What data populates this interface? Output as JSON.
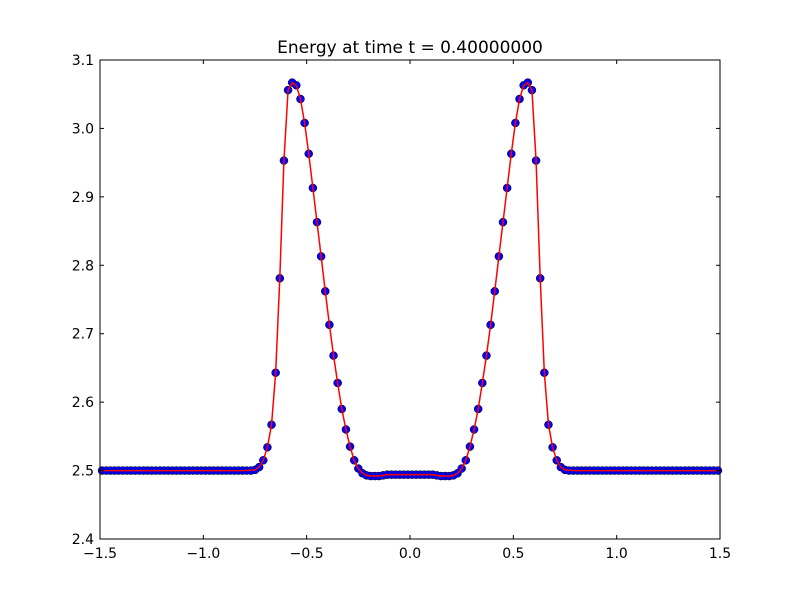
{
  "chart_data": {
    "type": "scatter",
    "title": "Energy at time t =     0.40000000",
    "xlabel": "",
    "ylabel": "",
    "xlim": [
      -1.5,
      1.5
    ],
    "ylim": [
      2.4,
      3.1
    ],
    "x_ticks": [
      -1.5,
      -1.0,
      -0.5,
      0.0,
      0.5,
      1.0,
      1.5
    ],
    "x_tick_labels": [
      "−1.5",
      "−1.0",
      "−0.5",
      "0.0",
      "0.5",
      "1.0",
      "1.5"
    ],
    "y_ticks": [
      2.4,
      2.5,
      2.6,
      2.7,
      2.8,
      2.9,
      3.0,
      3.1
    ],
    "y_tick_labels": [
      "2.4",
      "2.5",
      "2.6",
      "2.7",
      "2.8",
      "2.9",
      "3.0",
      "3.1"
    ],
    "grid": false,
    "legend": "none",
    "series": [
      {
        "style": "markers",
        "color": "#0000ff",
        "x": [
          -1.49,
          -1.47,
          -1.45,
          -1.43,
          -1.41,
          -1.39,
          -1.37,
          -1.35,
          -1.33,
          -1.31,
          -1.29,
          -1.27,
          -1.25,
          -1.23,
          -1.21,
          -1.19,
          -1.17,
          -1.15,
          -1.13,
          -1.11,
          -1.09,
          -1.07,
          -1.05,
          -1.03,
          -1.01,
          -0.99,
          -0.97,
          -0.95,
          -0.93,
          -0.91,
          -0.89,
          -0.87,
          -0.85,
          -0.83,
          -0.81,
          -0.79,
          -0.77,
          -0.75,
          -0.73,
          -0.71,
          -0.69,
          -0.67,
          -0.65,
          -0.63,
          -0.61,
          -0.59,
          -0.57,
          -0.55,
          -0.53,
          -0.51,
          -0.49,
          -0.47,
          -0.45,
          -0.43,
          -0.41,
          -0.39,
          -0.37,
          -0.35,
          -0.33,
          -0.31,
          -0.29,
          -0.27,
          -0.25,
          -0.23,
          -0.21,
          -0.19,
          -0.17,
          -0.15,
          -0.13,
          -0.11,
          -0.09,
          -0.07,
          -0.05,
          -0.03,
          -0.01,
          0.01,
          0.03,
          0.05,
          0.07,
          0.09,
          0.11,
          0.13,
          0.15,
          0.17,
          0.19,
          0.21,
          0.23,
          0.25,
          0.27,
          0.29,
          0.31,
          0.33,
          0.35,
          0.37,
          0.39,
          0.41,
          0.43,
          0.45,
          0.47,
          0.49,
          0.51,
          0.53,
          0.55,
          0.57,
          0.59,
          0.61,
          0.63,
          0.65,
          0.67,
          0.69,
          0.71,
          0.73,
          0.75,
          0.77,
          0.79,
          0.81,
          0.83,
          0.85,
          0.87,
          0.89,
          0.91,
          0.93,
          0.95,
          0.97,
          0.99,
          1.01,
          1.03,
          1.05,
          1.07,
          1.09,
          1.11,
          1.13,
          1.15,
          1.17,
          1.19,
          1.21,
          1.23,
          1.25,
          1.27,
          1.29,
          1.31,
          1.33,
          1.35,
          1.37,
          1.39,
          1.41,
          1.43,
          1.45,
          1.47,
          1.49
        ],
        "y": [
          2.5,
          2.5,
          2.5,
          2.5,
          2.5,
          2.5,
          2.5,
          2.5,
          2.5,
          2.5,
          2.5,
          2.5,
          2.5,
          2.5,
          2.5,
          2.5,
          2.5,
          2.5,
          2.5,
          2.5,
          2.5,
          2.5,
          2.5,
          2.5,
          2.5,
          2.5,
          2.5,
          2.5,
          2.5,
          2.5,
          2.5,
          2.5,
          2.5,
          2.5,
          2.5,
          2.5,
          2.5,
          2.501,
          2.505,
          2.515,
          2.534,
          2.567,
          2.643,
          2.781,
          2.953,
          3.056,
          3.067,
          3.063,
          3.043,
          3.008,
          2.963,
          2.913,
          2.863,
          2.813,
          2.762,
          2.713,
          2.668,
          2.628,
          2.59,
          2.56,
          2.535,
          2.515,
          2.503,
          2.496,
          2.493,
          2.492,
          2.492,
          2.492,
          2.493,
          2.494,
          2.494,
          2.494,
          2.494,
          2.494,
          2.494,
          2.494,
          2.494,
          2.494,
          2.494,
          2.494,
          2.494,
          2.493,
          2.492,
          2.492,
          2.492,
          2.493,
          2.496,
          2.503,
          2.515,
          2.535,
          2.56,
          2.59,
          2.628,
          2.668,
          2.713,
          2.762,
          2.813,
          2.863,
          2.913,
          2.963,
          3.008,
          3.043,
          3.063,
          3.067,
          3.056,
          2.953,
          2.781,
          2.643,
          2.567,
          2.534,
          2.515,
          2.505,
          2.501,
          2.5,
          2.5,
          2.5,
          2.5,
          2.5,
          2.5,
          2.5,
          2.5,
          2.5,
          2.5,
          2.5,
          2.5,
          2.5,
          2.5,
          2.5,
          2.5,
          2.5,
          2.5,
          2.5,
          2.5,
          2.5,
          2.5,
          2.5,
          2.5,
          2.5,
          2.5,
          2.5,
          2.5,
          2.5,
          2.5,
          2.5,
          2.5,
          2.5,
          2.5,
          2.5,
          2.5,
          2.5
        ]
      },
      {
        "style": "line",
        "color": "#ff0000",
        "x": [
          -1.5,
          -0.8,
          -0.75,
          -0.73,
          -0.71,
          -0.69,
          -0.67,
          -0.65,
          -0.63,
          -0.61,
          -0.59,
          -0.57,
          -0.55,
          -0.53,
          -0.51,
          -0.49,
          -0.47,
          -0.45,
          -0.43,
          -0.41,
          -0.39,
          -0.37,
          -0.35,
          -0.33,
          -0.31,
          -0.29,
          -0.27,
          -0.25,
          -0.23,
          -0.21,
          -0.19,
          -0.17,
          -0.15,
          -0.13,
          -0.11,
          -0.09,
          0.09,
          0.11,
          0.13,
          0.15,
          0.17,
          0.19,
          0.21,
          0.23,
          0.25,
          0.27,
          0.29,
          0.31,
          0.33,
          0.35,
          0.37,
          0.39,
          0.41,
          0.43,
          0.45,
          0.47,
          0.49,
          0.51,
          0.53,
          0.55,
          0.57,
          0.59,
          0.61,
          0.63,
          0.65,
          0.67,
          0.69,
          0.71,
          0.73,
          0.75,
          0.8,
          1.5
        ],
        "y": [
          2.5,
          2.5,
          2.501,
          2.505,
          2.515,
          2.534,
          2.567,
          2.643,
          2.781,
          2.953,
          3.056,
          3.067,
          3.063,
          3.043,
          3.008,
          2.963,
          2.913,
          2.863,
          2.813,
          2.762,
          2.713,
          2.668,
          2.628,
          2.59,
          2.56,
          2.535,
          2.515,
          2.503,
          2.496,
          2.493,
          2.492,
          2.492,
          2.492,
          2.493,
          2.494,
          2.494,
          2.494,
          2.494,
          2.493,
          2.492,
          2.492,
          2.492,
          2.493,
          2.496,
          2.503,
          2.515,
          2.535,
          2.56,
          2.59,
          2.628,
          2.668,
          2.713,
          2.762,
          2.813,
          2.863,
          2.913,
          2.963,
          3.008,
          3.043,
          3.063,
          3.067,
          3.056,
          2.953,
          2.781,
          2.643,
          2.567,
          2.534,
          2.515,
          2.505,
          2.501,
          2.5,
          2.5
        ]
      }
    ]
  }
}
